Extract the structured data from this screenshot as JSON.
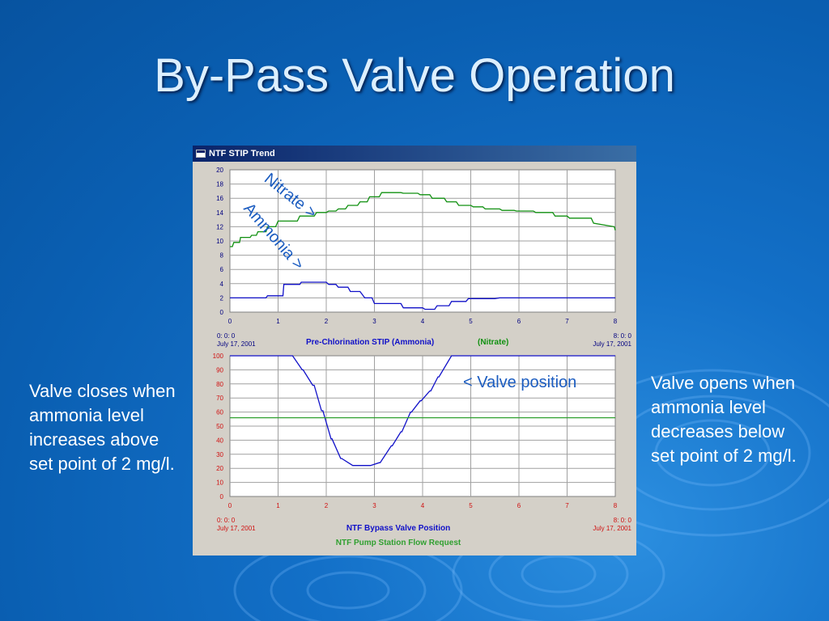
{
  "slide": {
    "title": "By-Pass Valve Operation",
    "left_note": "Valve closes when ammonia level increases above set point of 2 mg/l.",
    "right_note": "Valve opens when ammonia level decreases below set point of 2 mg/l."
  },
  "window": {
    "title": "NTF STIP Trend"
  },
  "annotations": {
    "nitrate": "Nitrate >",
    "ammonia": "Ammonia >",
    "valve": "< Valve position"
  },
  "colors": {
    "ammonia": "#1010c8",
    "nitrate": "#109010",
    "valve": "#1010c8",
    "flow": "#30a030",
    "axis_top": "#000080",
    "axis_bottom": "#d01010",
    "grid": "#a0a0a0",
    "plot_bg": "#ffffff"
  },
  "chart_data": [
    {
      "type": "line",
      "title": "",
      "xlabel": "",
      "ylabel": "",
      "xlim": [
        0,
        8
      ],
      "ylim": [
        0,
        20
      ],
      "x_ticks": [
        "0",
        "1",
        "2",
        "3",
        "4",
        "5",
        "6",
        "7",
        "8"
      ],
      "y_ticks": [
        "0",
        "2",
        "4",
        "6",
        "8",
        "10",
        "12",
        "14",
        "16",
        "18",
        "20"
      ],
      "grid": true,
      "time_start": {
        "time": "0: 0: 0",
        "date": "July 17, 2001"
      },
      "time_end": {
        "time": "8: 0: 0",
        "date": "July 17, 2001"
      },
      "legend": [
        "Pre-Chlorination STIP (Ammonia)",
        "(Nitrate)"
      ],
      "series": [
        {
          "name": "Pre-Chlorination STIP (Ammonia)",
          "x": [
            0,
            0.75,
            0.78,
            1.1,
            1.12,
            1.45,
            1.48,
            2.0,
            2.05,
            2.2,
            2.25,
            2.45,
            2.5,
            2.7,
            2.8,
            2.95,
            3.0,
            3.55,
            3.6,
            4.0,
            4.05,
            4.25,
            4.3,
            4.55,
            4.6,
            4.9,
            4.95,
            5.5,
            5.6,
            8.0
          ],
          "values": [
            2.0,
            2.0,
            2.3,
            2.3,
            3.9,
            3.9,
            4.2,
            4.2,
            3.9,
            3.9,
            3.5,
            3.5,
            2.9,
            2.9,
            2.0,
            2.0,
            1.2,
            1.2,
            0.6,
            0.6,
            0.4,
            0.4,
            0.9,
            0.9,
            1.5,
            1.5,
            1.9,
            1.9,
            2.0,
            2.0
          ]
        },
        {
          "name": "(Nitrate)",
          "x": [
            0,
            0.05,
            0.08,
            0.2,
            0.22,
            0.42,
            0.45,
            0.55,
            0.58,
            0.75,
            0.78,
            0.95,
            1.0,
            1.4,
            1.45,
            1.75,
            1.8,
            2.0,
            2.05,
            2.2,
            2.25,
            2.4,
            2.45,
            2.65,
            2.7,
            2.85,
            2.9,
            3.1,
            3.15,
            3.55,
            3.6,
            3.9,
            3.95,
            4.15,
            4.2,
            4.45,
            4.5,
            4.7,
            4.75,
            5.0,
            5.05,
            5.25,
            5.3,
            5.6,
            5.65,
            5.9,
            5.95,
            6.3,
            6.35,
            6.7,
            6.75,
            7.0,
            7.05,
            7.5,
            7.55,
            7.98,
            8.0
          ],
          "values": [
            9.2,
            9.2,
            9.8,
            9.8,
            10.5,
            10.5,
            10.8,
            10.8,
            11.3,
            11.3,
            12.0,
            12.0,
            12.8,
            12.8,
            13.5,
            13.5,
            14.0,
            14.0,
            14.2,
            14.2,
            14.5,
            14.5,
            15.0,
            15.0,
            15.5,
            15.5,
            16.2,
            16.2,
            16.8,
            16.8,
            16.7,
            16.7,
            16.5,
            16.5,
            16.0,
            16.0,
            15.5,
            15.5,
            15.0,
            15.0,
            14.8,
            14.8,
            14.5,
            14.5,
            14.3,
            14.3,
            14.2,
            14.2,
            14.0,
            14.0,
            13.5,
            13.5,
            13.2,
            13.2,
            12.5,
            12.0,
            11.5
          ]
        }
      ]
    },
    {
      "type": "line",
      "title": "",
      "xlabel": "",
      "ylabel": "",
      "xlim": [
        0,
        8
      ],
      "ylim": [
        0,
        100
      ],
      "x_ticks": [
        "0",
        "1",
        "2",
        "3",
        "4",
        "5",
        "6",
        "7",
        "8"
      ],
      "y_ticks": [
        "0",
        "10",
        "20",
        "30",
        "40",
        "50",
        "60",
        "70",
        "80",
        "90",
        "100"
      ],
      "grid": true,
      "time_start": {
        "time": "0: 0: 0",
        "date": "July 17, 2001"
      },
      "time_end": {
        "time": "8: 0: 0",
        "date": "July 17, 2001"
      },
      "legend": [
        "NTF Bypass Valve Position",
        "NTF Pump Station Flow Request"
      ],
      "series": [
        {
          "name": "NTF Bypass Valve Position",
          "x": [
            0,
            1.3,
            1.5,
            1.52,
            1.72,
            1.75,
            1.9,
            1.93,
            2.1,
            2.12,
            2.3,
            2.32,
            2.55,
            2.57,
            2.9,
            2.92,
            3.1,
            3.12,
            3.35,
            3.37,
            3.55,
            3.57,
            3.75,
            3.77,
            3.95,
            3.97,
            4.15,
            4.17,
            4.32,
            4.34,
            4.6,
            4.62,
            8.0
          ],
          "values": [
            100,
            100,
            90,
            90,
            79,
            79,
            61,
            61,
            41,
            41,
            27,
            27,
            22,
            22,
            22,
            22,
            24,
            24,
            36,
            36,
            46,
            46,
            60,
            60,
            68,
            68,
            75,
            75,
            85,
            85,
            100,
            100,
            100
          ]
        },
        {
          "name": "NTF Pump Station Flow Request",
          "x": [
            0,
            8
          ],
          "values": [
            56,
            56
          ]
        }
      ]
    }
  ]
}
